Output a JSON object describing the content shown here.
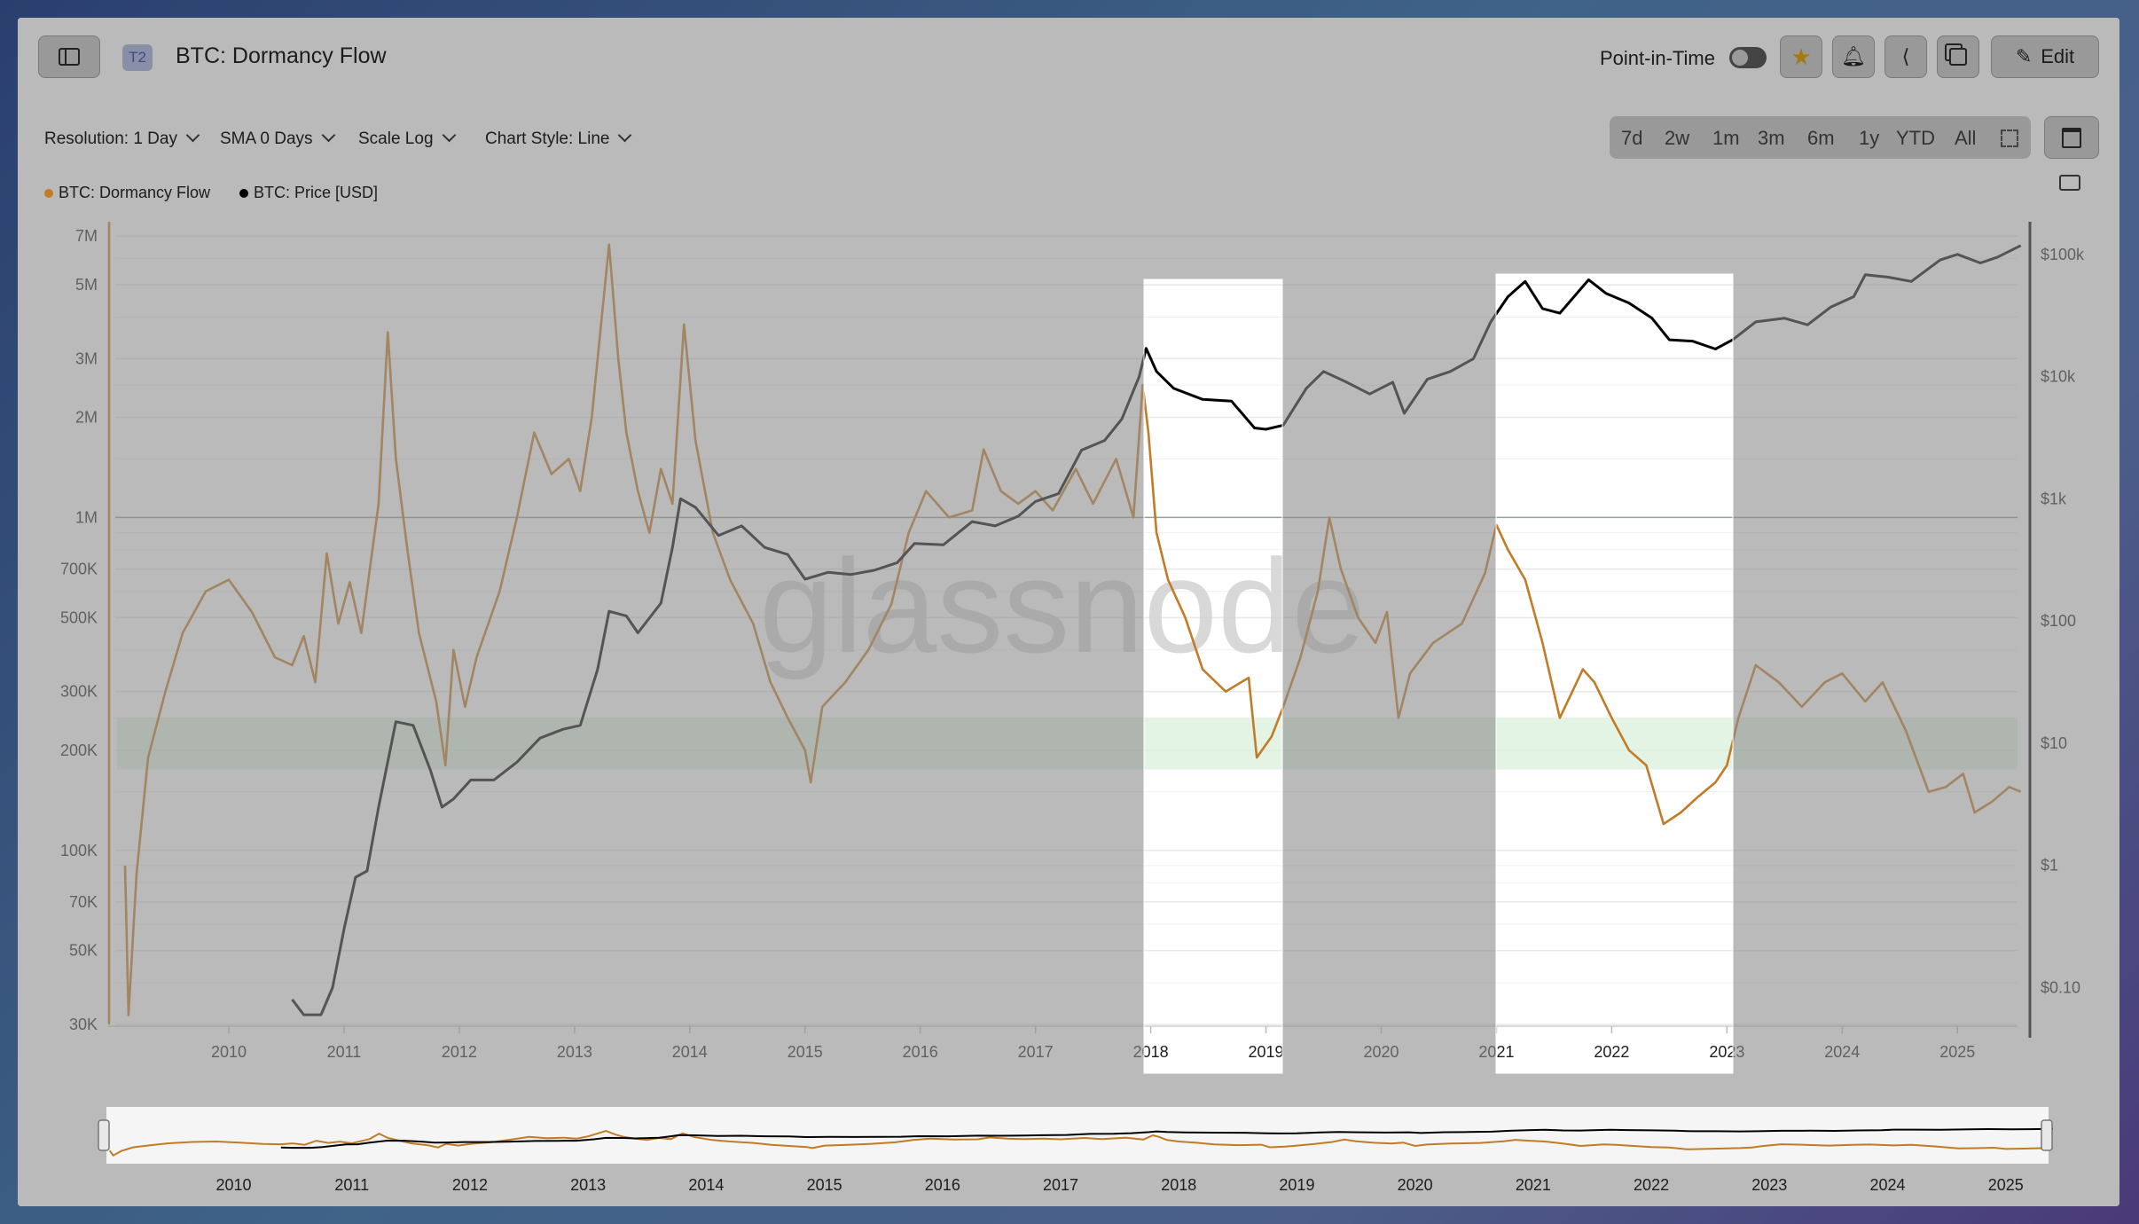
{
  "header": {
    "badge": "T2",
    "title": "BTC: Dormancy Flow",
    "point_in_time": "Point-in-Time",
    "edit_label": "Edit"
  },
  "controls": {
    "resolution": "Resolution: 1 Day",
    "sma": "SMA 0 Days",
    "scale": "Scale Log",
    "chart_style": "Chart Style: Line",
    "ranges": [
      "7d",
      "2w",
      "1m",
      "3m",
      "6m",
      "1y",
      "YTD",
      "All"
    ]
  },
  "legend": [
    {
      "label": "BTC: Dormancy Flow",
      "color": "#c27b27"
    },
    {
      "label": "BTC: Price [USD]",
      "color": "#000000"
    }
  ],
  "watermark": "glassnode",
  "colors": {
    "dormancy": "#c27b27",
    "price": "#000000",
    "overlay": "#8c8c8c",
    "band": "#d7eed9"
  },
  "chart_data": {
    "type": "line",
    "x_tick_labels": [
      "2010",
      "2011",
      "2012",
      "2013",
      "2014",
      "2015",
      "2016",
      "2017",
      "2018",
      "2019",
      "2020",
      "2021",
      "2022",
      "2023",
      "2024",
      "2025"
    ],
    "y_left_scale": "log",
    "y_left_tick_labels": [
      "7M",
      "5M",
      "3M",
      "2M",
      "1M",
      "700K",
      "500K",
      "300K",
      "200K",
      "100K",
      "70K",
      "50K",
      "30K"
    ],
    "y_left_tick_values": [
      7000000,
      5000000,
      3000000,
      2000000,
      1000000,
      700000,
      500000,
      300000,
      200000,
      100000,
      70000,
      50000,
      30000
    ],
    "y_left_range": [
      30000,
      7500000
    ],
    "y_right_scale": "log",
    "y_right_tick_labels": [
      "$100k",
      "$10k",
      "$1k",
      "$100",
      "$10",
      "$1",
      "$0.10"
    ],
    "y_right_tick_values": [
      100000,
      10000,
      1000,
      100,
      10,
      1,
      0.1
    ],
    "y_right_range": [
      0.05,
      170000
    ],
    "x_range": [
      2009.05,
      2025.55
    ],
    "band_dormancy_range": [
      175000,
      250000
    ],
    "highlight_periods": [
      [
        2017.95,
        2019.15
      ],
      [
        2021.0,
        2023.05
      ]
    ],
    "series": [
      {
        "name": "BTC: Dormancy Flow",
        "axis": "left",
        "points": [
          [
            2009.1,
            90000
          ],
          [
            2009.13,
            32000
          ],
          [
            2009.2,
            85000
          ],
          [
            2009.3,
            190000
          ],
          [
            2009.45,
            300000
          ],
          [
            2009.6,
            450000
          ],
          [
            2009.8,
            600000
          ],
          [
            2010.0,
            650000
          ],
          [
            2010.2,
            520000
          ],
          [
            2010.4,
            380000
          ],
          [
            2010.55,
            360000
          ],
          [
            2010.65,
            440000
          ],
          [
            2010.75,
            320000
          ],
          [
            2010.85,
            780000
          ],
          [
            2010.95,
            480000
          ],
          [
            2011.05,
            640000
          ],
          [
            2011.15,
            450000
          ],
          [
            2011.3,
            1100000
          ],
          [
            2011.38,
            3600000
          ],
          [
            2011.45,
            1500000
          ],
          [
            2011.55,
            800000
          ],
          [
            2011.65,
            450000
          ],
          [
            2011.8,
            280000
          ],
          [
            2011.88,
            180000
          ],
          [
            2011.95,
            400000
          ],
          [
            2012.05,
            270000
          ],
          [
            2012.15,
            380000
          ],
          [
            2012.35,
            600000
          ],
          [
            2012.5,
            1000000
          ],
          [
            2012.65,
            1800000
          ],
          [
            2012.8,
            1350000
          ],
          [
            2012.95,
            1500000
          ],
          [
            2013.05,
            1200000
          ],
          [
            2013.15,
            2000000
          ],
          [
            2013.3,
            6600000
          ],
          [
            2013.38,
            3000000
          ],
          [
            2013.45,
            1800000
          ],
          [
            2013.55,
            1200000
          ],
          [
            2013.65,
            900000
          ],
          [
            2013.75,
            1400000
          ],
          [
            2013.85,
            1100000
          ],
          [
            2013.95,
            3800000
          ],
          [
            2014.05,
            1700000
          ],
          [
            2014.2,
            900000
          ],
          [
            2014.35,
            650000
          ],
          [
            2014.55,
            480000
          ],
          [
            2014.7,
            320000
          ],
          [
            2014.85,
            250000
          ],
          [
            2015.0,
            200000
          ],
          [
            2015.05,
            160000
          ],
          [
            2015.15,
            270000
          ],
          [
            2015.35,
            320000
          ],
          [
            2015.55,
            400000
          ],
          [
            2015.75,
            550000
          ],
          [
            2015.9,
            900000
          ],
          [
            2016.05,
            1200000
          ],
          [
            2016.25,
            1000000
          ],
          [
            2016.45,
            1050000
          ],
          [
            2016.55,
            1600000
          ],
          [
            2016.7,
            1200000
          ],
          [
            2016.85,
            1100000
          ],
          [
            2017.0,
            1200000
          ],
          [
            2017.15,
            1050000
          ],
          [
            2017.35,
            1400000
          ],
          [
            2017.5,
            1100000
          ],
          [
            2017.7,
            1500000
          ],
          [
            2017.85,
            1000000
          ],
          [
            2017.93,
            2500000
          ],
          [
            2017.98,
            1800000
          ],
          [
            2018.05,
            900000
          ],
          [
            2018.15,
            650000
          ],
          [
            2018.3,
            500000
          ],
          [
            2018.45,
            350000
          ],
          [
            2018.65,
            300000
          ],
          [
            2018.85,
            330000
          ],
          [
            2018.92,
            190000
          ],
          [
            2019.05,
            220000
          ],
          [
            2019.15,
            270000
          ],
          [
            2019.3,
            380000
          ],
          [
            2019.45,
            600000
          ],
          [
            2019.55,
            1000000
          ],
          [
            2019.65,
            700000
          ],
          [
            2019.8,
            500000
          ],
          [
            2019.95,
            420000
          ],
          [
            2020.05,
            520000
          ],
          [
            2020.15,
            250000
          ],
          [
            2020.25,
            340000
          ],
          [
            2020.45,
            420000
          ],
          [
            2020.7,
            480000
          ],
          [
            2020.9,
            680000
          ],
          [
            2021.0,
            950000
          ],
          [
            2021.1,
            800000
          ],
          [
            2021.25,
            650000
          ],
          [
            2021.4,
            420000
          ],
          [
            2021.55,
            250000
          ],
          [
            2021.75,
            350000
          ],
          [
            2021.85,
            320000
          ],
          [
            2022.0,
            250000
          ],
          [
            2022.15,
            200000
          ],
          [
            2022.3,
            180000
          ],
          [
            2022.45,
            120000
          ],
          [
            2022.6,
            130000
          ],
          [
            2022.75,
            145000
          ],
          [
            2022.9,
            160000
          ],
          [
            2023.0,
            180000
          ],
          [
            2023.1,
            250000
          ],
          [
            2023.25,
            360000
          ],
          [
            2023.45,
            320000
          ],
          [
            2023.65,
            270000
          ],
          [
            2023.85,
            320000
          ],
          [
            2024.0,
            340000
          ],
          [
            2024.2,
            280000
          ],
          [
            2024.35,
            320000
          ],
          [
            2024.55,
            230000
          ],
          [
            2024.75,
            150000
          ],
          [
            2024.9,
            155000
          ],
          [
            2025.05,
            170000
          ],
          [
            2025.15,
            130000
          ],
          [
            2025.3,
            140000
          ],
          [
            2025.45,
            155000
          ],
          [
            2025.55,
            150000
          ]
        ]
      },
      {
        "name": "BTC: Price [USD]",
        "axis": "right",
        "points": [
          [
            2010.55,
            0.08
          ],
          [
            2010.65,
            0.06
          ],
          [
            2010.8,
            0.06
          ],
          [
            2010.9,
            0.1
          ],
          [
            2011.0,
            0.3
          ],
          [
            2011.1,
            0.8
          ],
          [
            2011.2,
            0.9
          ],
          [
            2011.3,
            3
          ],
          [
            2011.45,
            15
          ],
          [
            2011.6,
            14
          ],
          [
            2011.75,
            6
          ],
          [
            2011.85,
            3
          ],
          [
            2011.95,
            3.5
          ],
          [
            2012.1,
            5
          ],
          [
            2012.3,
            5
          ],
          [
            2012.5,
            7
          ],
          [
            2012.7,
            11
          ],
          [
            2012.9,
            13
          ],
          [
            2013.05,
            14
          ],
          [
            2013.2,
            40
          ],
          [
            2013.3,
            120
          ],
          [
            2013.45,
            110
          ],
          [
            2013.55,
            80
          ],
          [
            2013.75,
            140
          ],
          [
            2013.85,
            400
          ],
          [
            2013.92,
            1000
          ],
          [
            2014.05,
            850
          ],
          [
            2014.25,
            500
          ],
          [
            2014.45,
            600
          ],
          [
            2014.65,
            400
          ],
          [
            2014.85,
            350
          ],
          [
            2015.0,
            220
          ],
          [
            2015.2,
            250
          ],
          [
            2015.4,
            240
          ],
          [
            2015.6,
            260
          ],
          [
            2015.8,
            300
          ],
          [
            2015.95,
            430
          ],
          [
            2016.2,
            420
          ],
          [
            2016.45,
            650
          ],
          [
            2016.65,
            600
          ],
          [
            2016.85,
            720
          ],
          [
            2017.0,
            950
          ],
          [
            2017.2,
            1100
          ],
          [
            2017.4,
            2500
          ],
          [
            2017.6,
            3000
          ],
          [
            2017.75,
            4500
          ],
          [
            2017.9,
            10000
          ],
          [
            2017.96,
            17000
          ],
          [
            2018.05,
            11000
          ],
          [
            2018.2,
            8000
          ],
          [
            2018.45,
            6500
          ],
          [
            2018.7,
            6300
          ],
          [
            2018.9,
            3800
          ],
          [
            2019.0,
            3700
          ],
          [
            2019.15,
            4000
          ],
          [
            2019.35,
            8000
          ],
          [
            2019.5,
            11000
          ],
          [
            2019.7,
            9000
          ],
          [
            2019.9,
            7200
          ],
          [
            2020.1,
            9000
          ],
          [
            2020.2,
            5000
          ],
          [
            2020.4,
            9500
          ],
          [
            2020.6,
            11000
          ],
          [
            2020.8,
            14000
          ],
          [
            2020.95,
            28000
          ],
          [
            2021.1,
            45000
          ],
          [
            2021.25,
            60000
          ],
          [
            2021.4,
            36000
          ],
          [
            2021.55,
            33000
          ],
          [
            2021.8,
            62000
          ],
          [
            2021.95,
            48000
          ],
          [
            2022.15,
            40000
          ],
          [
            2022.35,
            30000
          ],
          [
            2022.5,
            20000
          ],
          [
            2022.7,
            19500
          ],
          [
            2022.9,
            16800
          ],
          [
            2023.05,
            20000
          ],
          [
            2023.25,
            28000
          ],
          [
            2023.5,
            30000
          ],
          [
            2023.7,
            26500
          ],
          [
            2023.9,
            37000
          ],
          [
            2024.1,
            45000
          ],
          [
            2024.2,
            68000
          ],
          [
            2024.4,
            65000
          ],
          [
            2024.6,
            60000
          ],
          [
            2024.85,
            90000
          ],
          [
            2025.0,
            100000
          ],
          [
            2025.2,
            85000
          ],
          [
            2025.35,
            95000
          ],
          [
            2025.55,
            118000
          ]
        ]
      }
    ]
  }
}
